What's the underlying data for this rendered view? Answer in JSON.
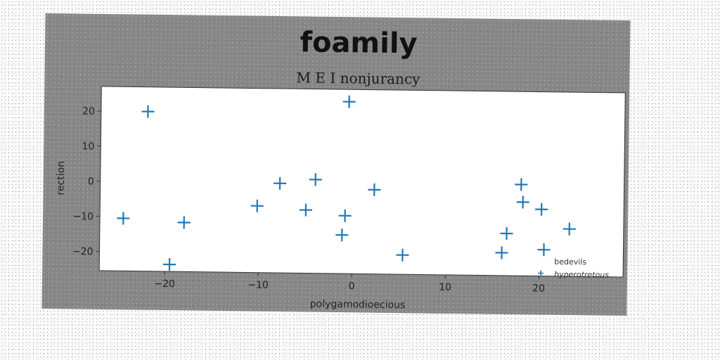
{
  "chart_data": {
    "type": "scatter",
    "title": "foamily",
    "subtitle": "M E I nonjurancy",
    "xlabel": "polygamodioecious",
    "ylabel": "rection",
    "xlim": [
      -27,
      29
    ],
    "ylim": [
      -25.5,
      27
    ],
    "xticks": [
      -20,
      -10,
      0,
      10,
      20
    ],
    "yticks": [
      -20,
      -10,
      0,
      10,
      20
    ],
    "grid": false,
    "legend_position": "bottom-right",
    "marker": "plus",
    "colors": {
      "series": "#1f77b4",
      "axes_bg": "#ffffff",
      "figure_bg": "#878787"
    },
    "series": [
      {
        "name": "bedevils",
        "points": []
      },
      {
        "name": "hyperotretous",
        "points": [
          [
            -22,
            20
          ],
          [
            -0.5,
            23.5
          ],
          [
            -24.5,
            -10.5
          ],
          [
            -18,
            -11.5
          ],
          [
            -19.5,
            -23.5
          ],
          [
            -10.2,
            -6.5
          ],
          [
            -7.8,
            0
          ],
          [
            -4,
            1.2
          ],
          [
            -5,
            -7.5
          ],
          [
            -0.8,
            -9
          ],
          [
            -1.1,
            -14.5
          ],
          [
            2.3,
            -1.5
          ],
          [
            5.4,
            -20
          ],
          [
            16.5,
            -13.5
          ],
          [
            16,
            -19
          ],
          [
            18,
            0.5
          ],
          [
            18.2,
            -4.5
          ],
          [
            20.2,
            -6.5
          ],
          [
            20.5,
            -18
          ],
          [
            23.2,
            -12
          ]
        ]
      }
    ]
  }
}
